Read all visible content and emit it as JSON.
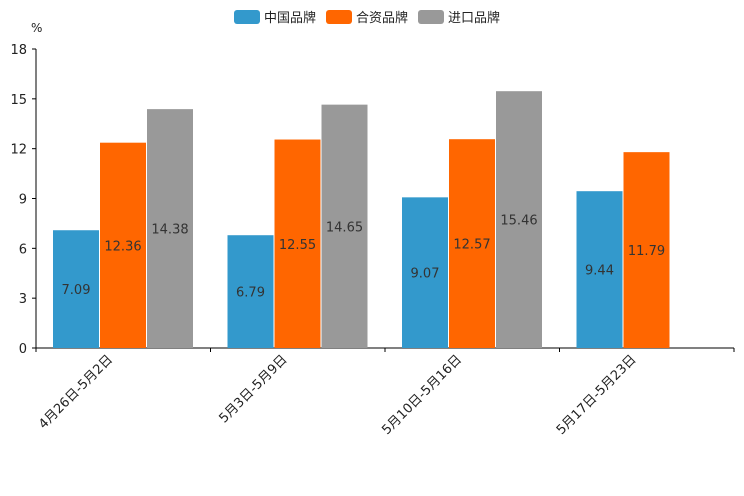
{
  "chart_data": {
    "type": "bar",
    "title": "",
    "ylabel": "%",
    "xlabel": "",
    "ylim": [
      0,
      18
    ],
    "yticks": [
      0,
      3,
      6,
      9,
      12,
      15,
      18
    ],
    "categories": [
      "4月26日-5月2日",
      "5月3日-5月9日",
      "5月10日-5月16日",
      "5月17日-5月23日"
    ],
    "series": [
      {
        "name": "中国品牌",
        "color": "#3399CC",
        "values": [
          7.09,
          6.79,
          9.07,
          9.44
        ]
      },
      {
        "name": "合资品牌",
        "color": "#FF6600",
        "values": [
          12.36,
          12.55,
          12.57,
          11.79
        ]
      },
      {
        "name": "进口品牌",
        "color": "#999999",
        "values": [
          14.38,
          14.65,
          15.46,
          null
        ]
      }
    ],
    "legend_position": "top-center",
    "grid": false
  }
}
